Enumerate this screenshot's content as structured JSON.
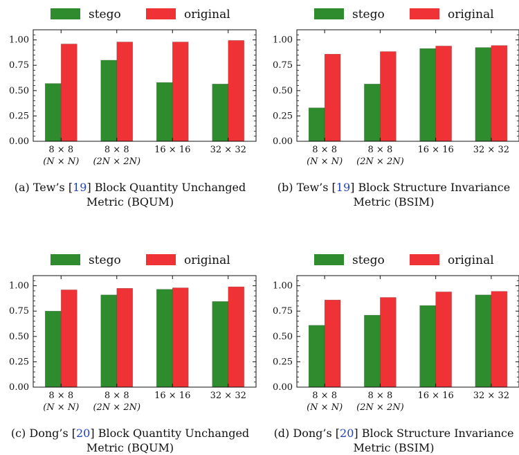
{
  "chart_data": [
    {
      "type": "bar",
      "panel": "a",
      "categories": [
        {
          "line1": "8 × 8",
          "line2": "(N × N)"
        },
        {
          "line1": "8 × 8",
          "line2": "(2N × 2N)"
        },
        {
          "line1": "16 × 16",
          "line2": ""
        },
        {
          "line1": "32 × 32",
          "line2": ""
        }
      ],
      "series": [
        {
          "name": "stego",
          "color": "#2e8b2e",
          "values": [
            0.57,
            0.8,
            0.58,
            0.565
          ]
        },
        {
          "name": "original",
          "color": "#ef3236",
          "values": [
            0.96,
            0.98,
            0.98,
            0.995
          ]
        }
      ],
      "ylim": [
        0,
        1.1
      ],
      "yticks": [
        "0.00",
        "0.25",
        "0.50",
        "0.75",
        "1.00"
      ],
      "ytick_values": [
        0,
        0.25,
        0.5,
        0.75,
        1.0
      ],
      "caption": {
        "line1_prefix": "(a) Tew’s [",
        "ref": "19",
        "line1_suffix": "] Block Quantity Unchanged",
        "line2": "Metric (BQUM)"
      }
    },
    {
      "type": "bar",
      "panel": "b",
      "categories": [
        {
          "line1": "8 × 8",
          "line2": "(N × N)"
        },
        {
          "line1": "8 × 8",
          "line2": "(2N × 2N)"
        },
        {
          "line1": "16 × 16",
          "line2": ""
        },
        {
          "line1": "32 × 32",
          "line2": ""
        }
      ],
      "series": [
        {
          "name": "stego",
          "color": "#2e8b2e",
          "values": [
            0.33,
            0.565,
            0.915,
            0.925
          ]
        },
        {
          "name": "original",
          "color": "#ef3236",
          "values": [
            0.86,
            0.885,
            0.94,
            0.945
          ]
        }
      ],
      "ylim": [
        0,
        1.1
      ],
      "yticks": [
        "0.00",
        "0.25",
        "0.50",
        "0.75",
        "1.00"
      ],
      "ytick_values": [
        0,
        0.25,
        0.5,
        0.75,
        1.0
      ],
      "caption": {
        "line1_prefix": "(b) Tew’s [",
        "ref": "19",
        "line1_suffix": "] Block Structure Invariance",
        "line2": "Metric (BSIM)"
      }
    },
    {
      "type": "bar",
      "panel": "c",
      "categories": [
        {
          "line1": "8 × 8",
          "line2": "(N × N)"
        },
        {
          "line1": "8 × 8",
          "line2": "(2N × 2N)"
        },
        {
          "line1": "16 × 16",
          "line2": ""
        },
        {
          "line1": "32 × 32",
          "line2": ""
        }
      ],
      "series": [
        {
          "name": "stego",
          "color": "#2e8b2e",
          "values": [
            0.75,
            0.91,
            0.965,
            0.845
          ]
        },
        {
          "name": "original",
          "color": "#ef3236",
          "values": [
            0.96,
            0.975,
            0.98,
            0.99
          ]
        }
      ],
      "ylim": [
        0,
        1.1
      ],
      "yticks": [
        "0.00",
        "0.25",
        "0.50",
        "0.75",
        "1.00"
      ],
      "ytick_values": [
        0,
        0.25,
        0.5,
        0.75,
        1.0
      ],
      "caption": {
        "line1_prefix": "(c) Dong’s [",
        "ref": "20",
        "line1_suffix": "] Block Quantity Unchanged",
        "line2": "Metric (BQUM)"
      }
    },
    {
      "type": "bar",
      "panel": "d",
      "categories": [
        {
          "line1": "8 × 8",
          "line2": "(N × N)"
        },
        {
          "line1": "8 × 8",
          "line2": "(2N × 2N)"
        },
        {
          "line1": "16 × 16",
          "line2": ""
        },
        {
          "line1": "32 × 32",
          "line2": ""
        }
      ],
      "series": [
        {
          "name": "stego",
          "color": "#2e8b2e",
          "values": [
            0.61,
            0.71,
            0.805,
            0.91
          ]
        },
        {
          "name": "original",
          "color": "#ef3236",
          "values": [
            0.86,
            0.885,
            0.94,
            0.945
          ]
        }
      ],
      "ylim": [
        0,
        1.1
      ],
      "yticks": [
        "0.00",
        "0.25",
        "0.50",
        "0.75",
        "1.00"
      ],
      "ytick_values": [
        0,
        0.25,
        0.5,
        0.75,
        1.0
      ],
      "caption": {
        "line1_prefix": "(d) Dong’s [",
        "ref": "20",
        "line1_suffix": "] Block Structure Invariance",
        "line2": "Metric (BSIM)"
      }
    }
  ]
}
